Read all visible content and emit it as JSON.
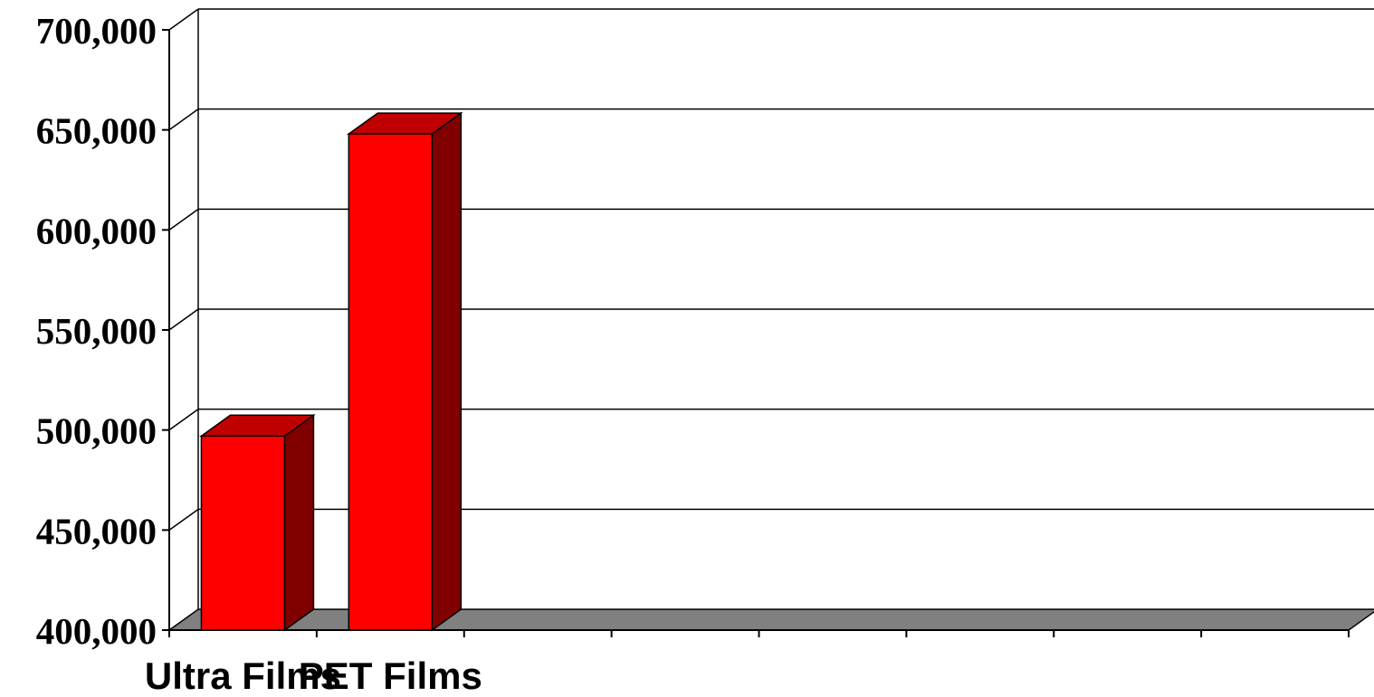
{
  "chart_data": {
    "type": "bar",
    "style": "3d-column",
    "categories": [
      "Ultra Films",
      "PET Films"
    ],
    "values": [
      497000,
      648000
    ],
    "ylim": [
      400000,
      700000
    ],
    "yticks": [
      "400,000",
      "450,000",
      "500,000",
      "550,000",
      "600,000",
      "650,000",
      "700,000"
    ],
    "ytick_values": [
      400000,
      450000,
      500000,
      550000,
      600000,
      650000,
      700000
    ],
    "category_slots": 8,
    "grid": true,
    "legend": "none",
    "title": "",
    "xlabel": "",
    "ylabel": "",
    "colors": {
      "bar_front": "#ff0000",
      "bar_top": "#c00000",
      "bar_side": "#800000",
      "floor": "#808080",
      "grid": "#000000"
    }
  }
}
